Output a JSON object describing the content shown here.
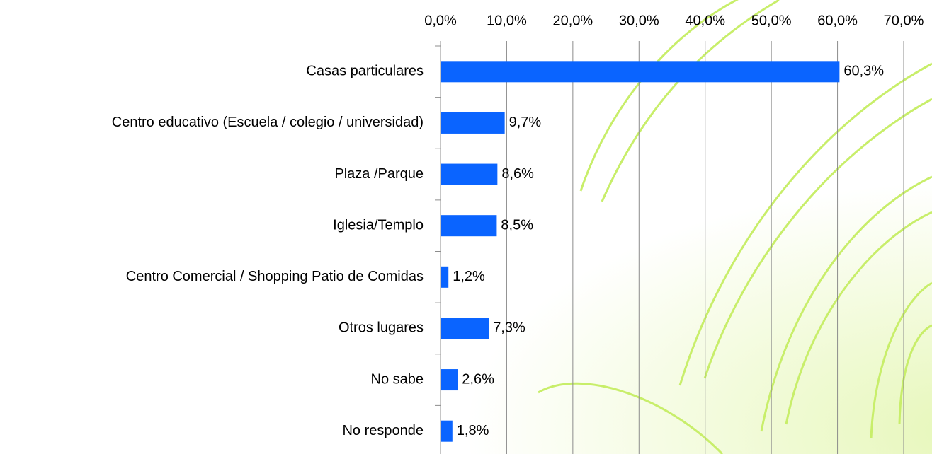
{
  "chart_data": {
    "type": "bar",
    "orientation": "horizontal",
    "categories": [
      "Casas particulares",
      "Centro educativo (Escuela / colegio / universidad)",
      "Plaza /Parque",
      "Iglesia/Templo",
      "Centro Comercial / Shopping Patio de Comidas",
      "Otros lugares",
      "No sabe",
      "No responde"
    ],
    "values": [
      60.3,
      9.7,
      8.6,
      8.5,
      1.2,
      7.3,
      2.6,
      1.8
    ],
    "value_labels": [
      "60,3%",
      "9,7%",
      "8,6%",
      "8,5%",
      "1,2%",
      "7,3%",
      "2,6%",
      "1,8%"
    ],
    "color": "#0a64ff",
    "xlim": [
      0,
      70
    ],
    "xticks": [
      {
        "value": 0,
        "label": "0,0%"
      },
      {
        "value": 10,
        "label": "10,0%"
      },
      {
        "value": 20,
        "label": "20,0%"
      },
      {
        "value": 30,
        "label": "30,0%"
      },
      {
        "value": 40,
        "label": "40,0%"
      },
      {
        "value": 50,
        "label": "50,0%"
      },
      {
        "value": 60,
        "label": "60,0%"
      },
      {
        "value": 70,
        "label": "70,0%"
      }
    ],
    "grid": true
  }
}
